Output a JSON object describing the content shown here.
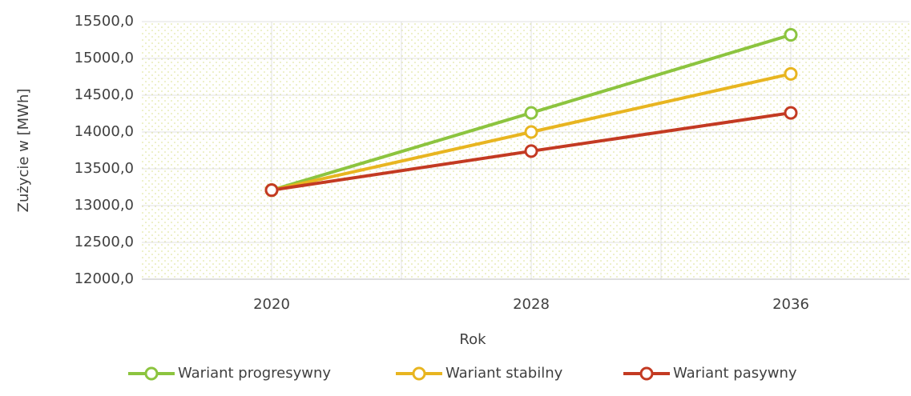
{
  "chart_data": {
    "type": "line",
    "categories": [
      "2020",
      "2028",
      "2036"
    ],
    "series": [
      {
        "name": "Wariant progresywny",
        "color": "#8cc43f",
        "values": [
          13210,
          14260,
          15320
        ]
      },
      {
        "name": "Wariant stabilny",
        "color": "#e8b520",
        "values": [
          13210,
          14000,
          14790
        ]
      },
      {
        "name": "Wariant pasywny",
        "color": "#c33a22",
        "values": [
          13210,
          13740,
          14260
        ]
      }
    ],
    "ylim": [
      12000,
      15500
    ],
    "yticks": [
      {
        "value": 12000,
        "label": "12000,0"
      },
      {
        "value": 12500,
        "label": "12500,0"
      },
      {
        "value": 13000,
        "label": "13000,0"
      },
      {
        "value": 13500,
        "label": "13500,0"
      },
      {
        "value": 14000,
        "label": "14000,0"
      },
      {
        "value": 14500,
        "label": "14500,0"
      },
      {
        "value": 15000,
        "label": "15000,0"
      },
      {
        "value": 15500,
        "label": "15500,0"
      }
    ],
    "xlabel": "Rok",
    "ylabel": "Zużycie  w [MWh]",
    "grid": true,
    "legend": "bottom"
  }
}
